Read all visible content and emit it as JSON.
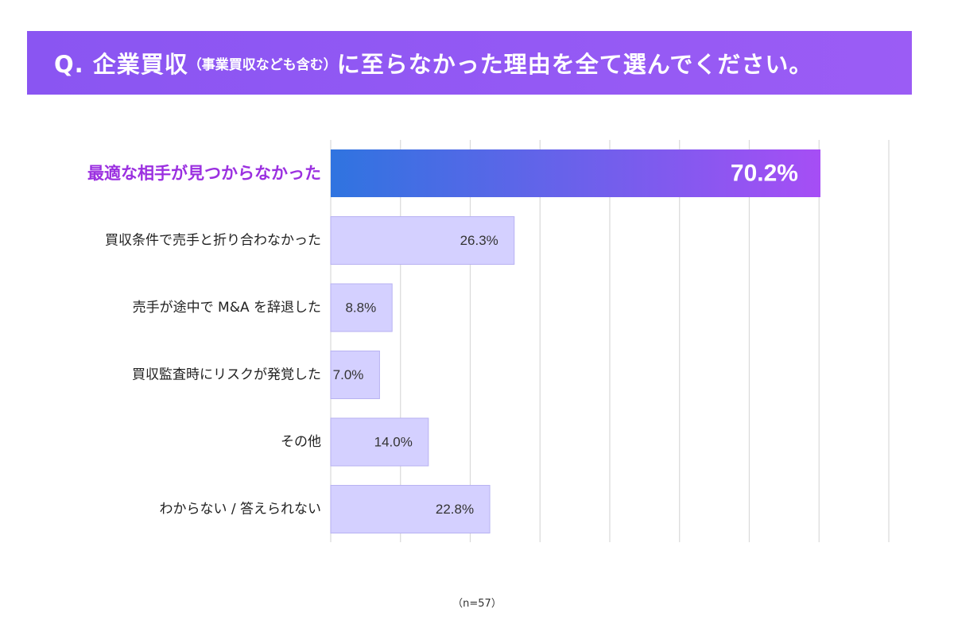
{
  "title": {
    "main_prefix": "Q. 企業買収",
    "sub": "（事業買収なども含む）",
    "main_suffix": "に至らなかった理由を全て選んでください。"
  },
  "footnote": "（n=57）",
  "colors": {
    "banner": "#8a55f2",
    "highlight_start": "#2f74e0",
    "highlight_end": "#a64ef5",
    "highlight_label": "#9b30e0",
    "bar": "#d4d0ff",
    "bar_border": "#b8b2f2",
    "grid": "#d9d9d9",
    "text": "#222222"
  },
  "chart_data": {
    "type": "bar",
    "orientation": "horizontal",
    "title": "Q. 企業買収（事業買収なども含む）に至らなかった理由を全て選んでください。",
    "xlabel": "",
    "ylabel": "",
    "xlim": [
      0,
      80
    ],
    "grid": true,
    "categories": [
      "最適な相手が見つからなかった",
      "買収条件で売手と折り合わなかった",
      "売手が途中で M&A を辞退した",
      "買収監査時にリスクが発覚した",
      "その他",
      "わからない / 答えられない"
    ],
    "values": [
      70.2,
      26.3,
      8.8,
      7.0,
      14.0,
      22.8
    ],
    "value_labels": [
      "70.2%",
      "26.3%",
      "8.8%",
      "7.0%",
      "14.0%",
      "22.8%"
    ],
    "highlight_index": 0,
    "unit": "%"
  }
}
